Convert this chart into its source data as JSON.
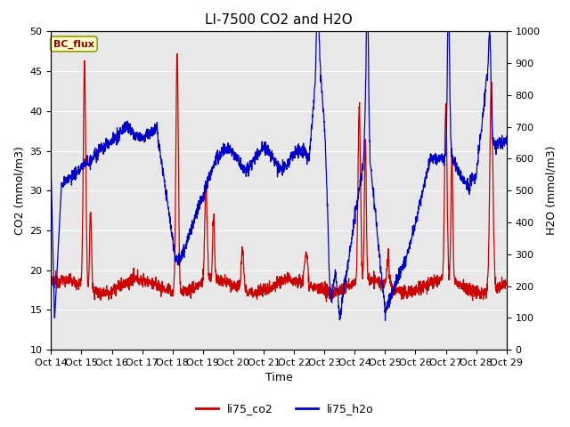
{
  "title": "LI-7500 CO2 and H2O",
  "xlabel": "Time",
  "ylabel_left": "CO2 (mmol/m3)",
  "ylabel_right": "H2O (mmol/m3)",
  "ylim_left": [
    10,
    50
  ],
  "ylim_right": [
    0,
    1000
  ],
  "xtick_labels": [
    "Oct 14",
    "Oct 15",
    "Oct 16",
    "Oct 17",
    "Oct 18",
    "Oct 19",
    "Oct 20",
    "Oct 21",
    "Oct 22",
    "Oct 23",
    "Oct 24",
    "Oct 25",
    "Oct 26",
    "Oct 27",
    "Oct 28",
    "Oct 29"
  ],
  "color_co2": "#cc0000",
  "color_h2o": "#0000cc",
  "legend_label_co2": "li75_co2",
  "legend_label_h2o": "li75_h2o",
  "annotation_text": "BC_flux",
  "annotation_bg": "#ffffcc",
  "annotation_border": "#999900",
  "bg_color": "#e8e8e8",
  "title_fontsize": 11,
  "axis_fontsize": 9,
  "tick_fontsize": 8,
  "linewidth": 0.9
}
